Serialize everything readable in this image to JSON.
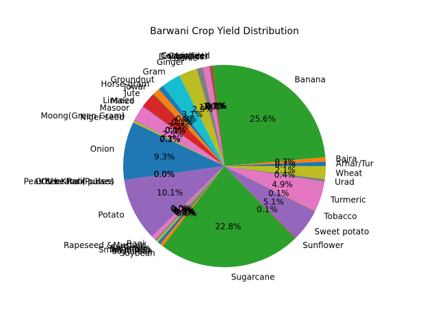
{
  "chart_data": {
    "type": "pie",
    "title": "Barwani Crop Yield Distribution",
    "start_angle_deg": 0,
    "direction": "counterclockwise",
    "legend": "none",
    "slices": [
      {
        "label": "Arhar/Tur",
        "value": 0.7,
        "color": "#1f77b4",
        "pct_text": "0.7%"
      },
      {
        "label": "Bajra",
        "value": 0.7,
        "color": "#ff7f0e",
        "pct_text": "0.7%"
      },
      {
        "label": "Banana",
        "value": 25.6,
        "color": "#2ca02c",
        "pct_text": "25.6%"
      },
      {
        "label": "Castor seed",
        "value": 0.3,
        "color": "#d62728",
        "pct_text": "0.3%"
      },
      {
        "label": "Coriander",
        "value": 0.1,
        "color": "#9467bd",
        "pct_text": "0.1%"
      },
      {
        "label": "Cotton(lint)",
        "value": 0.1,
        "color": "#8c564b",
        "pct_text": "0.1%"
      },
      {
        "label": "Dry chillies",
        "value": 1.0,
        "color": "#e377c2",
        "pct_text": "1.0%"
      },
      {
        "label": "Garlic",
        "value": 1.0,
        "color": "#7f7f7f",
        "pct_text": "1.0%"
      },
      {
        "label": "Ginger",
        "value": 2.9,
        "color": "#bcbd22",
        "pct_text": "2.9%"
      },
      {
        "label": "Gram",
        "value": 3.1,
        "color": "#17becf",
        "pct_text": "3.1%"
      },
      {
        "label": "Groundnut",
        "value": 0.8,
        "color": "#1f77b4",
        "pct_text": "0.8%"
      },
      {
        "label": "Horse-gram",
        "value": 1.1,
        "color": "#ff7f0e",
        "pct_text": "1.1%"
      },
      {
        "label": "Jowar",
        "value": 0.1,
        "color": "#2ca02c",
        "pct_text": "0.1%"
      },
      {
        "label": "Jute",
        "value": 2.5,
        "color": "#d62728",
        "pct_text": "2.5%"
      },
      {
        "label": "Linseed",
        "value": 0.1,
        "color": "#9467bd",
        "pct_text": "0.1%"
      },
      {
        "label": "Maize",
        "value": 0.0,
        "color": "#8c564b",
        "pct_text": "0.0%"
      },
      {
        "label": "Masoor",
        "value": 2.5,
        "color": "#e377c2",
        "pct_text": "2.5%"
      },
      {
        "label": "Moong(Green Gram)",
        "value": 0.1,
        "color": "#7f7f7f",
        "pct_text": "0.1%"
      },
      {
        "label": "Niger seed",
        "value": 0.3,
        "color": "#bcbd22",
        "pct_text": "0.3%"
      },
      {
        "label": "Onion",
        "value": 9.3,
        "color": "#1f77b4",
        "pct_text": "9.3%"
      },
      {
        "label": "Other  Rabi pulses",
        "value": 0.0,
        "color": "#ff7f0e",
        "pct_text": "0.0%"
      },
      {
        "label": "Other Kharif pulses",
        "value": 0.0,
        "color": "#2ca02c",
        "pct_text": "0.0%"
      },
      {
        "label": "Peas & beans (Pulses)",
        "value": 0.0,
        "color": "#d62728",
        "pct_text": "0.0%"
      },
      {
        "label": "Potato",
        "value": 10.1,
        "color": "#9467bd",
        "pct_text": "10.1%"
      },
      {
        "label": "Ragi",
        "value": 0.0,
        "color": "#8c564b",
        "pct_text": "0.0%"
      },
      {
        "label": "Rapeseed &Mustard",
        "value": 0.7,
        "color": "#e377c2",
        "pct_text": "0.7%"
      },
      {
        "label": "Safflower",
        "value": 0.3,
        "color": "#7f7f7f",
        "pct_text": "0.3%"
      },
      {
        "label": "Sesamum",
        "value": 0.3,
        "color": "#bcbd22",
        "pct_text": "0.3%"
      },
      {
        "label": "Small millets",
        "value": 0.0,
        "color": "#17becf",
        "pct_text": "0.0%"
      },
      {
        "label": "Soyabean",
        "value": 0.5,
        "color": "#1f77b4",
        "pct_text": "0.5%"
      },
      {
        "label": "Soybean",
        "value": 0.5,
        "color": "#ff7f0e",
        "pct_text": "0.5%"
      },
      {
        "label": "Sugarcane",
        "value": 22.8,
        "color": "#2ca02c",
        "pct_text": "22.8%"
      },
      {
        "label": "Sunflower",
        "value": 0.1,
        "color": "#d62728",
        "pct_text": "0.1%"
      },
      {
        "label": "Sweet potato",
        "value": 5.1,
        "color": "#9467bd",
        "pct_text": "5.1%"
      },
      {
        "label": "Tobacco",
        "value": 0.1,
        "color": "#8c564b",
        "pct_text": "0.1%"
      },
      {
        "label": "Turmeric",
        "value": 4.9,
        "color": "#e377c2",
        "pct_text": "4.9%"
      },
      {
        "label": "Urad",
        "value": 0.4,
        "color": "#7f7f7f",
        "pct_text": "0.4%"
      },
      {
        "label": "Wheat",
        "value": 2.1,
        "color": "#bcbd22",
        "pct_text": "2.1%"
      }
    ]
  }
}
